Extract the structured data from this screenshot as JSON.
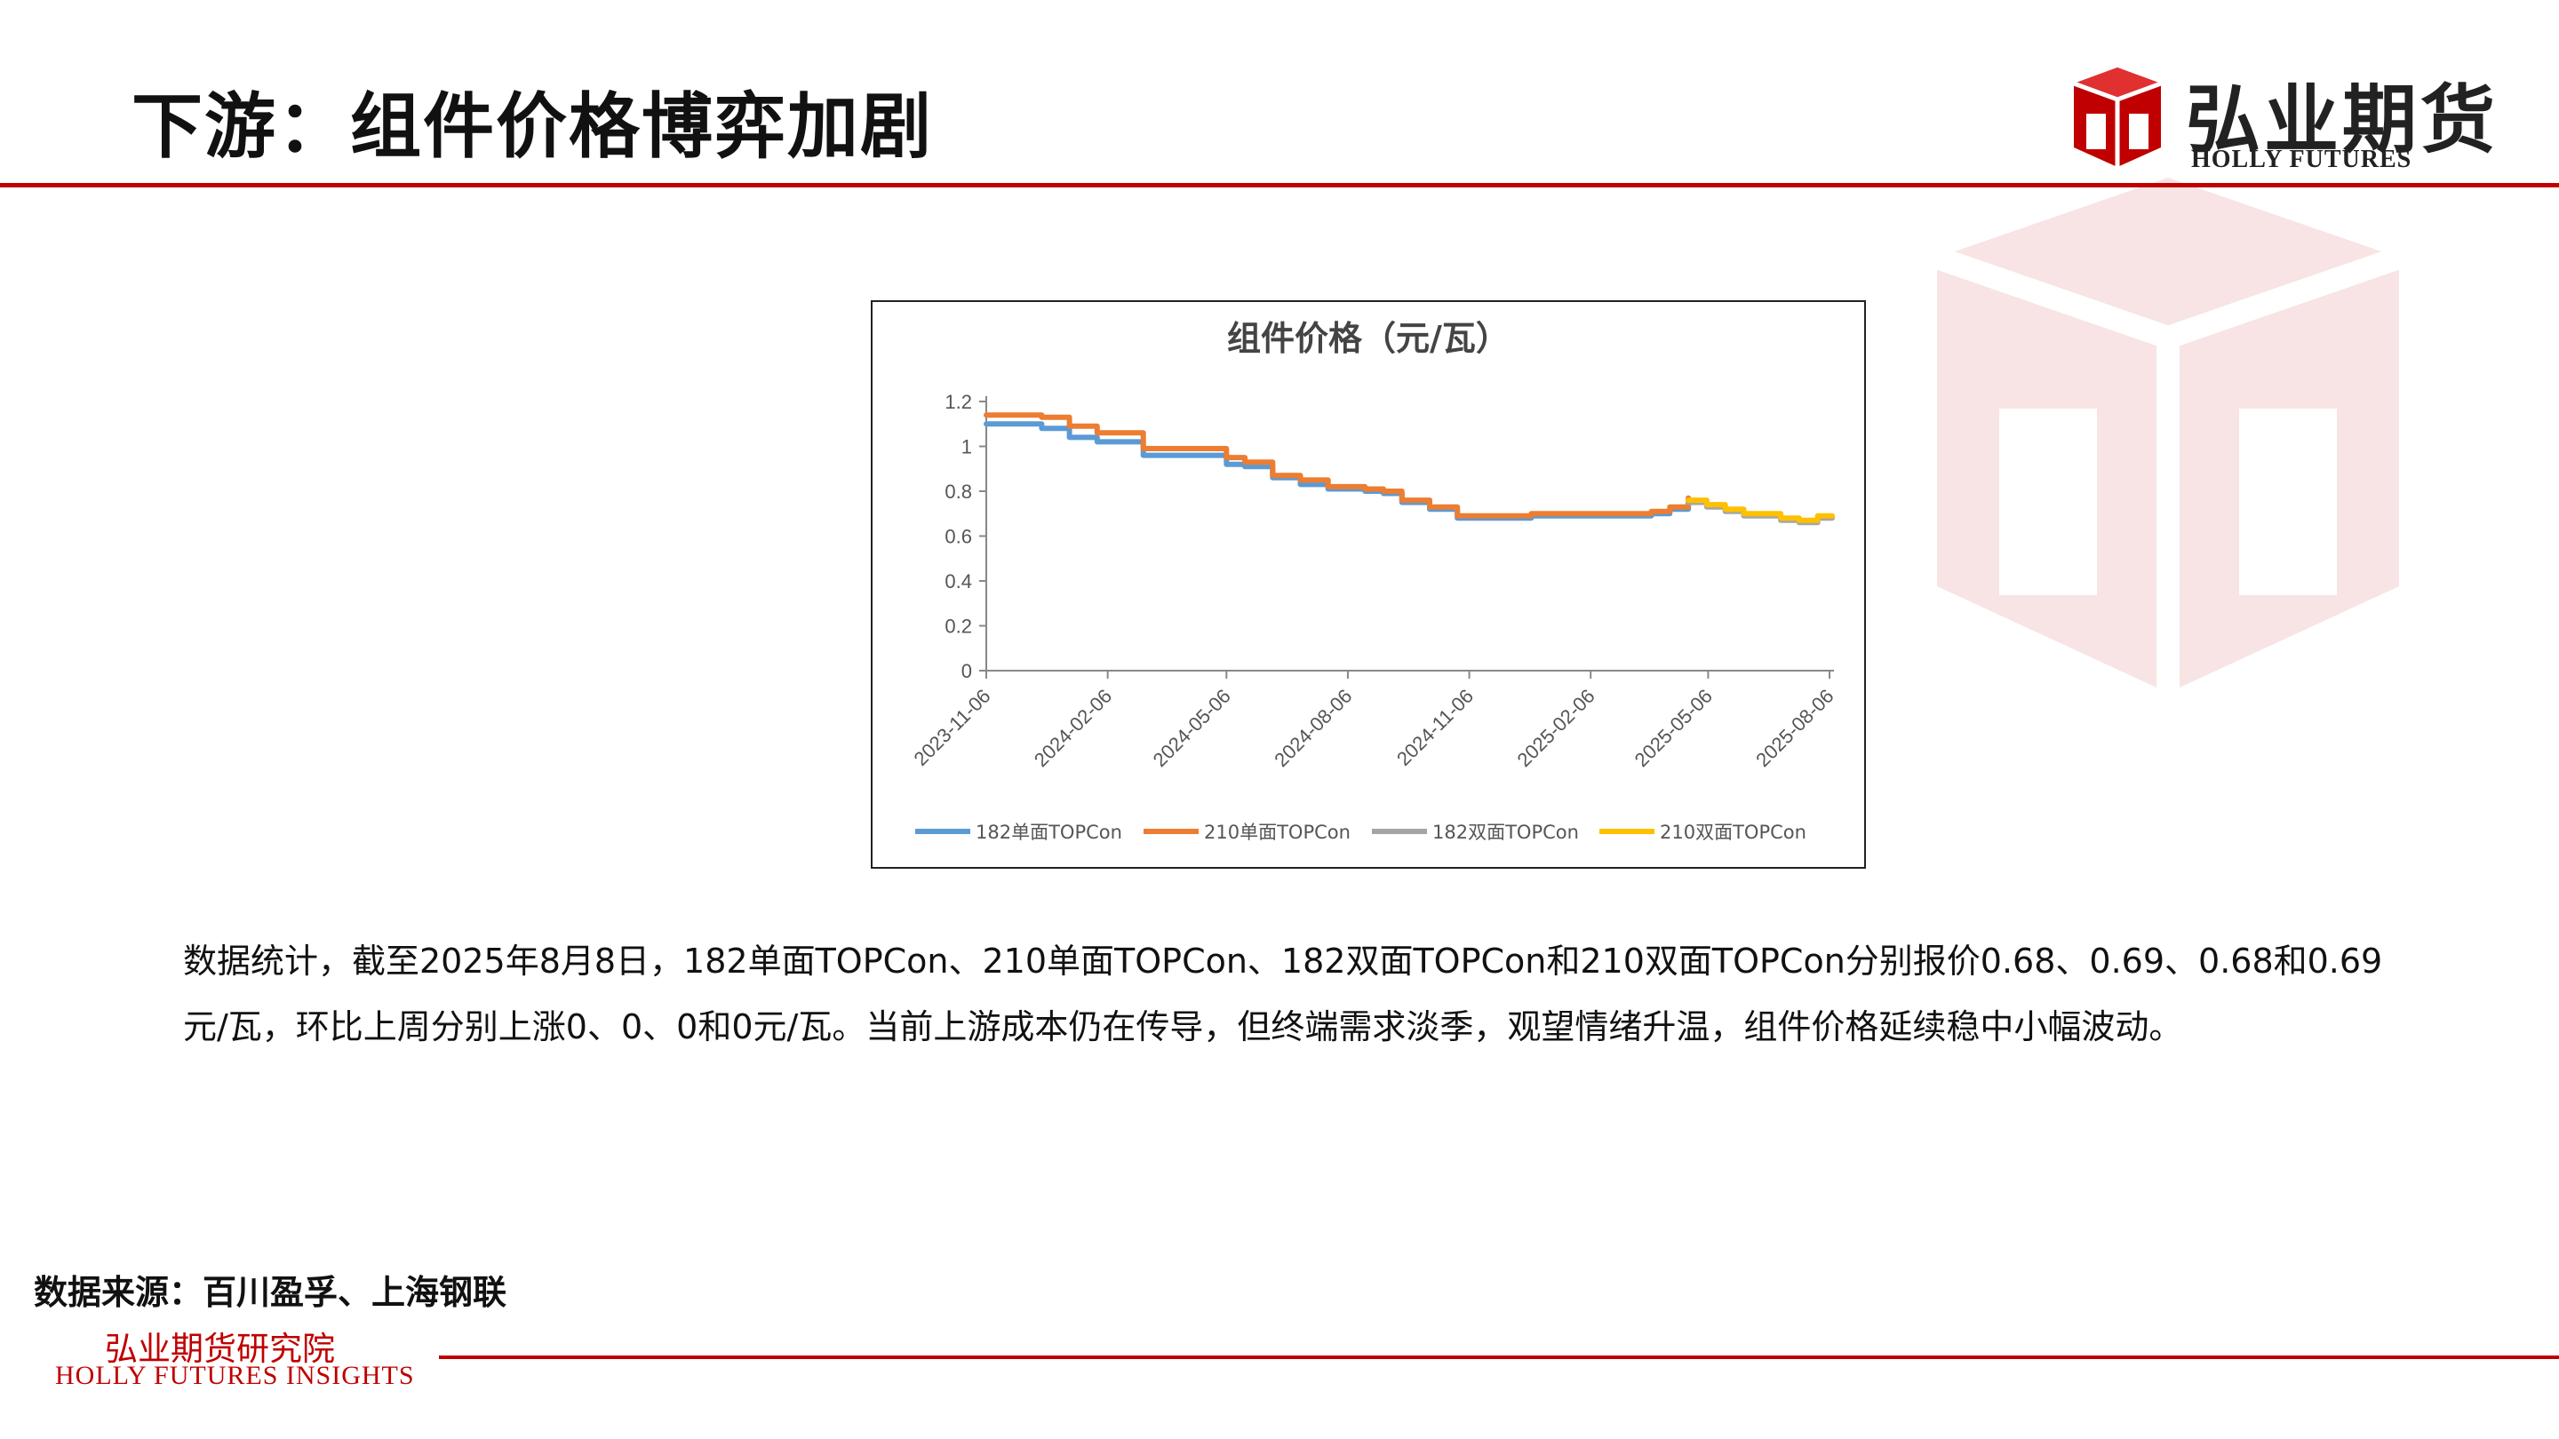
{
  "page": {
    "title": "下游：组件价格博弈加剧",
    "logo_cn": "弘业期货",
    "logo_en": "HOLLY FUTURES",
    "body_text": "数据统计，截至2025年8月8日，182单面TOPCon、210单面TOPCon、182双面TOPCon和210双面TOPCon分别报价0.68、0.69、0.68和0.69元/瓦，环比上周分别上涨0、0、0和0元/瓦。当前上游成本仍在传导，但终端需求淡季，观望情绪升温，组件价格延续稳中小幅波动。",
    "source": "数据来源：百川盈孚、上海钢联",
    "footer_cn": "弘业期货研究院",
    "footer_en": "HOLLY FUTURES INSIGHTS",
    "brand_color": "#c00000"
  },
  "chart_data": {
    "type": "line",
    "title": "组件价格（元/瓦）",
    "xlabel": "",
    "ylabel": "",
    "ylim": [
      0,
      1.2
    ],
    "yticks": [
      0,
      0.2,
      0.4,
      0.6,
      0.8,
      1,
      1.2
    ],
    "yticklabels": [
      "0",
      "0.2",
      "0.4",
      "0.6",
      "0.8",
      "1",
      "1.2"
    ],
    "xlim": [
      "2023-11-06",
      "2025-08-08"
    ],
    "xticks": [
      "2023-11-06",
      "2024-02-06",
      "2024-05-06",
      "2024-08-06",
      "2024-11-06",
      "2025-02-06",
      "2025-05-06",
      "2025-08-06"
    ],
    "grid": false,
    "legend_position": "bottom",
    "series": [
      {
        "name": "182单面TOPCon",
        "color": "#5b9bd5",
        "x": [
          "2023-11-06",
          "2023-11-27",
          "2023-12-18",
          "2024-01-08",
          "2024-01-29",
          "2024-03-04",
          "2024-04-01",
          "2024-05-06",
          "2024-05-20",
          "2024-06-10",
          "2024-07-01",
          "2024-07-22",
          "2024-08-19",
          "2024-09-02",
          "2024-09-16",
          "2024-10-07",
          "2024-10-28",
          "2024-12-02",
          "2024-12-23",
          "2025-01-20",
          "2025-02-17",
          "2025-03-10",
          "2025-03-24",
          "2025-04-07",
          "2025-04-21"
        ],
        "y": [
          1.1,
          1.1,
          1.08,
          1.04,
          1.02,
          0.96,
          0.96,
          0.92,
          0.91,
          0.86,
          0.83,
          0.81,
          0.8,
          0.79,
          0.75,
          0.72,
          0.68,
          0.68,
          0.69,
          0.69,
          0.69,
          0.69,
          0.7,
          0.72,
          0.75
        ]
      },
      {
        "name": "210单面TOPCon",
        "color": "#ed7d31",
        "x": [
          "2023-11-06",
          "2023-11-27",
          "2023-12-18",
          "2024-01-08",
          "2024-01-29",
          "2024-03-04",
          "2024-04-01",
          "2024-05-06",
          "2024-05-20",
          "2024-06-10",
          "2024-07-01",
          "2024-07-22",
          "2024-08-19",
          "2024-09-02",
          "2024-09-16",
          "2024-10-07",
          "2024-10-28",
          "2024-12-02",
          "2024-12-23",
          "2025-01-20",
          "2025-02-17",
          "2025-03-10",
          "2025-03-24",
          "2025-04-07",
          "2025-04-21"
        ],
        "y": [
          1.14,
          1.14,
          1.13,
          1.09,
          1.06,
          0.99,
          0.99,
          0.95,
          0.93,
          0.87,
          0.85,
          0.82,
          0.81,
          0.8,
          0.76,
          0.73,
          0.69,
          0.69,
          0.7,
          0.7,
          0.7,
          0.7,
          0.71,
          0.73,
          0.77
        ]
      },
      {
        "name": "182双面TOPCon",
        "color": "#a5a5a5",
        "x": [
          "2025-04-21",
          "2025-05-05",
          "2025-05-19",
          "2025-06-02",
          "2025-06-16",
          "2025-06-30",
          "2025-07-14",
          "2025-07-28",
          "2025-08-08"
        ],
        "y": [
          0.75,
          0.73,
          0.71,
          0.69,
          0.69,
          0.67,
          0.66,
          0.68,
          0.68
        ]
      },
      {
        "name": "210双面TOPCon",
        "color": "#ffc000",
        "x": [
          "2025-04-21",
          "2025-05-05",
          "2025-05-19",
          "2025-06-02",
          "2025-06-16",
          "2025-06-30",
          "2025-07-14",
          "2025-07-28",
          "2025-08-08"
        ],
        "y": [
          0.76,
          0.74,
          0.72,
          0.7,
          0.7,
          0.68,
          0.67,
          0.69,
          0.69
        ]
      }
    ]
  }
}
